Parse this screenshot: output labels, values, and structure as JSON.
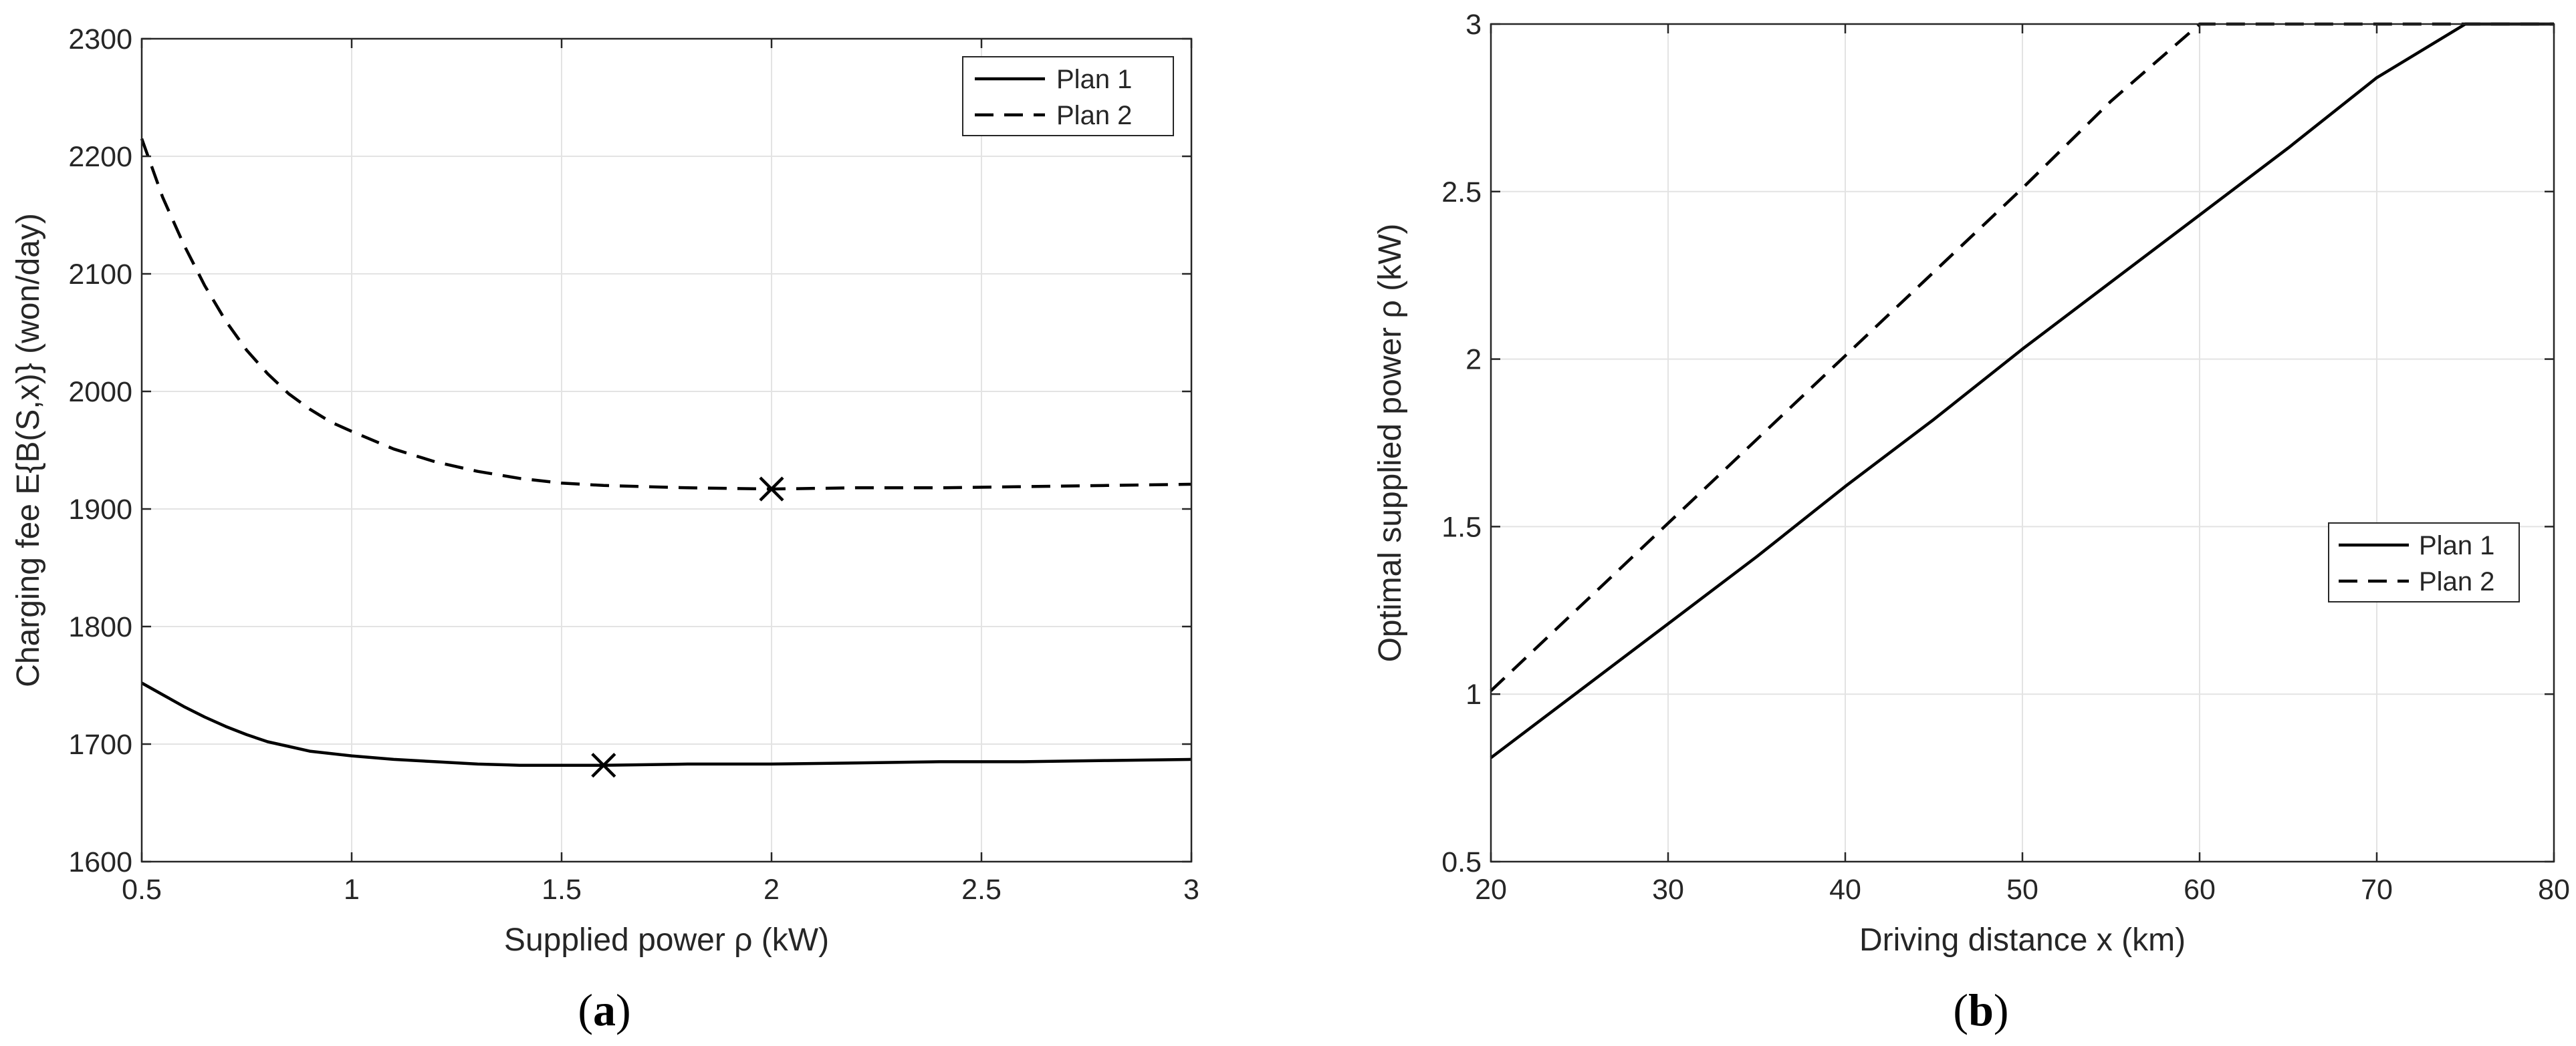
{
  "chart_data": [
    {
      "type": "line",
      "panel_label": "a",
      "xlabel": "Supplied power ρ (kW)",
      "ylabel": "Charging fee E{B(S,x)} (won/day)",
      "xlim": [
        0.5,
        3
      ],
      "ylim": [
        1600,
        2300
      ],
      "xticks": [
        0.5,
        1,
        1.5,
        2,
        2.5,
        3
      ],
      "xtick_labels": [
        "0.5",
        "1",
        "1.5",
        "2",
        "2.5",
        "3"
      ],
      "yticks": [
        1600,
        1700,
        1800,
        1900,
        2000,
        2100,
        2200,
        2300
      ],
      "ytick_labels": [
        "1600",
        "1700",
        "1800",
        "1900",
        "2000",
        "2100",
        "2200",
        "2300"
      ],
      "grid": true,
      "legend_position": "top-right",
      "series": [
        {
          "name": "Plan 1",
          "style": "solid",
          "x": [
            0.5,
            0.55,
            0.6,
            0.65,
            0.7,
            0.75,
            0.8,
            0.85,
            0.9,
            0.95,
            1.0,
            1.1,
            1.2,
            1.3,
            1.4,
            1.5,
            1.6,
            1.8,
            2.0,
            2.2,
            2.4,
            2.6,
            2.8,
            3.0
          ],
          "y": [
            1752,
            1742,
            1732,
            1723,
            1715,
            1708,
            1702,
            1698,
            1694,
            1692,
            1690,
            1687,
            1685,
            1683,
            1682,
            1682,
            1682,
            1683,
            1683,
            1684,
            1685,
            1685,
            1686,
            1687
          ],
          "min_marker": {
            "x": 1.6,
            "y": 1682
          }
        },
        {
          "name": "Plan 2",
          "style": "dashed",
          "x": [
            0.5,
            0.55,
            0.6,
            0.65,
            0.7,
            0.75,
            0.8,
            0.85,
            0.9,
            0.95,
            1.0,
            1.1,
            1.2,
            1.3,
            1.4,
            1.5,
            1.6,
            1.8,
            2.0,
            2.2,
            2.4,
            2.6,
            2.8,
            3.0
          ],
          "y": [
            2215,
            2165,
            2125,
            2090,
            2060,
            2035,
            2015,
            1998,
            1985,
            1974,
            1966,
            1951,
            1940,
            1932,
            1926,
            1922,
            1920,
            1918,
            1917,
            1918,
            1918,
            1919,
            1920,
            1921
          ],
          "min_marker": {
            "x": 2.0,
            "y": 1917
          }
        }
      ]
    },
    {
      "type": "line",
      "panel_label": "b",
      "xlabel": "Driving distance x (km)",
      "ylabel": "Optimal supplied power ρ (kW)",
      "xlim": [
        20,
        80
      ],
      "ylim": [
        0.5,
        3
      ],
      "xticks": [
        20,
        30,
        40,
        50,
        60,
        70,
        80
      ],
      "xtick_labels": [
        "20",
        "30",
        "40",
        "50",
        "60",
        "70",
        "80"
      ],
      "yticks": [
        0.5,
        1,
        1.5,
        2,
        2.5,
        3
      ],
      "ytick_labels": [
        "0.5",
        "1",
        "1.5",
        "2",
        "2.5",
        "3"
      ],
      "grid": true,
      "legend_position": "center-right",
      "series": [
        {
          "name": "Plan 1",
          "style": "solid",
          "x": [
            20,
            25,
            30,
            35,
            40,
            45,
            50,
            55,
            60,
            65,
            70,
            75,
            80
          ],
          "y": [
            0.81,
            1.01,
            1.21,
            1.41,
            1.62,
            1.82,
            2.03,
            2.23,
            2.43,
            2.63,
            2.84,
            3.0,
            3.0
          ]
        },
        {
          "name": "Plan 2",
          "style": "dashed",
          "x": [
            20,
            25,
            30,
            35,
            40,
            45,
            50,
            55,
            60,
            65,
            70,
            75,
            80
          ],
          "y": [
            1.01,
            1.26,
            1.51,
            1.76,
            2.01,
            2.26,
            2.51,
            2.77,
            3.0,
            3.0,
            3.0,
            3.0,
            3.0
          ]
        }
      ]
    }
  ],
  "captions": {
    "a": {
      "open": "(",
      "letter": "a",
      "close": ")"
    },
    "b": {
      "open": "(",
      "letter": "b",
      "close": ")"
    }
  }
}
